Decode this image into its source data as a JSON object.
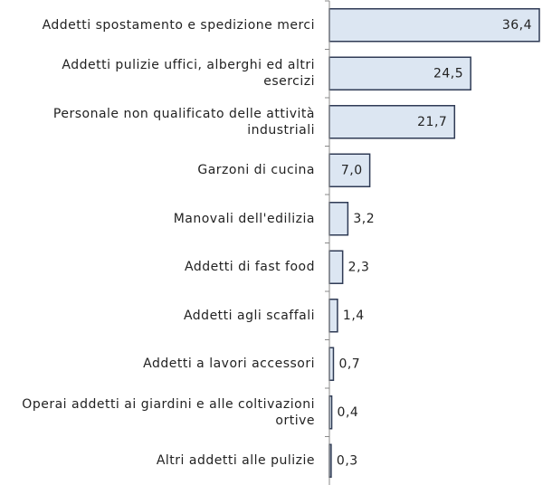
{
  "chart_data": {
    "type": "bar",
    "orientation": "horizontal",
    "categories": [
      "Addetti spostamento e spedizione merci",
      "Addetti pulizie uffici, alberghi ed altri esercizi",
      "Personale non qualificato delle attività industriali",
      "Garzoni di cucina",
      "Manovali dell'edilizia",
      "Addetti di fast food",
      "Addetti agli scaffali",
      "Addetti a lavori accessori",
      "Operai addetti ai giardini e alle coltivazioni ortive",
      "Altri addetti alle pulizie"
    ],
    "values": [
      36.4,
      24.5,
      21.7,
      7.0,
      3.2,
      2.3,
      1.4,
      0.7,
      0.4,
      0.3
    ],
    "value_labels": [
      "36,4",
      "24,5",
      "21,7",
      "7,0",
      "3,2",
      "2,3",
      "1,4",
      "0,7",
      "0,4",
      "0,3"
    ],
    "color": "#dce6f2"
  }
}
